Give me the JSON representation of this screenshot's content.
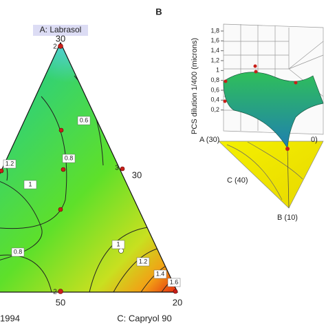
{
  "chart_data": [
    {
      "type": "ternary-contour",
      "vertex_labels": [
        "A: Labrasol",
        "1994",
        "C: Capryol 90"
      ],
      "ticks": [
        "30",
        "30",
        "50",
        "20"
      ],
      "replicate_labels": [
        "2",
        "3",
        "2",
        "2"
      ],
      "contours": [
        0.6,
        0.8,
        1,
        1.2,
        0.8,
        1,
        1.2,
        1.4,
        1.6
      ]
    },
    {
      "type": "surface-3d",
      "title": "B",
      "zlabel": "PCS dilution 1/400 (microns)",
      "zlim": [
        0,
        1.8
      ],
      "zticks": [
        {
          "value": 1.8,
          "label": "1,8"
        },
        {
          "value": 1.6,
          "label": "1,6"
        },
        {
          "value": 1.4,
          "label": "1,4"
        },
        {
          "value": 1.2,
          "label": "1,2"
        },
        1,
        {
          "value": 0.8,
          "label": "0,8"
        },
        {
          "value": 0.6,
          "label": "0,6"
        },
        {
          "value": 0.4,
          "label": "0,4"
        },
        {
          "value": 0.2,
          "label": "0,2"
        }
      ],
      "corner_labels": [
        "A (30)",
        "C (40)",
        "B (10)",
        "0)"
      ]
    }
  ]
}
